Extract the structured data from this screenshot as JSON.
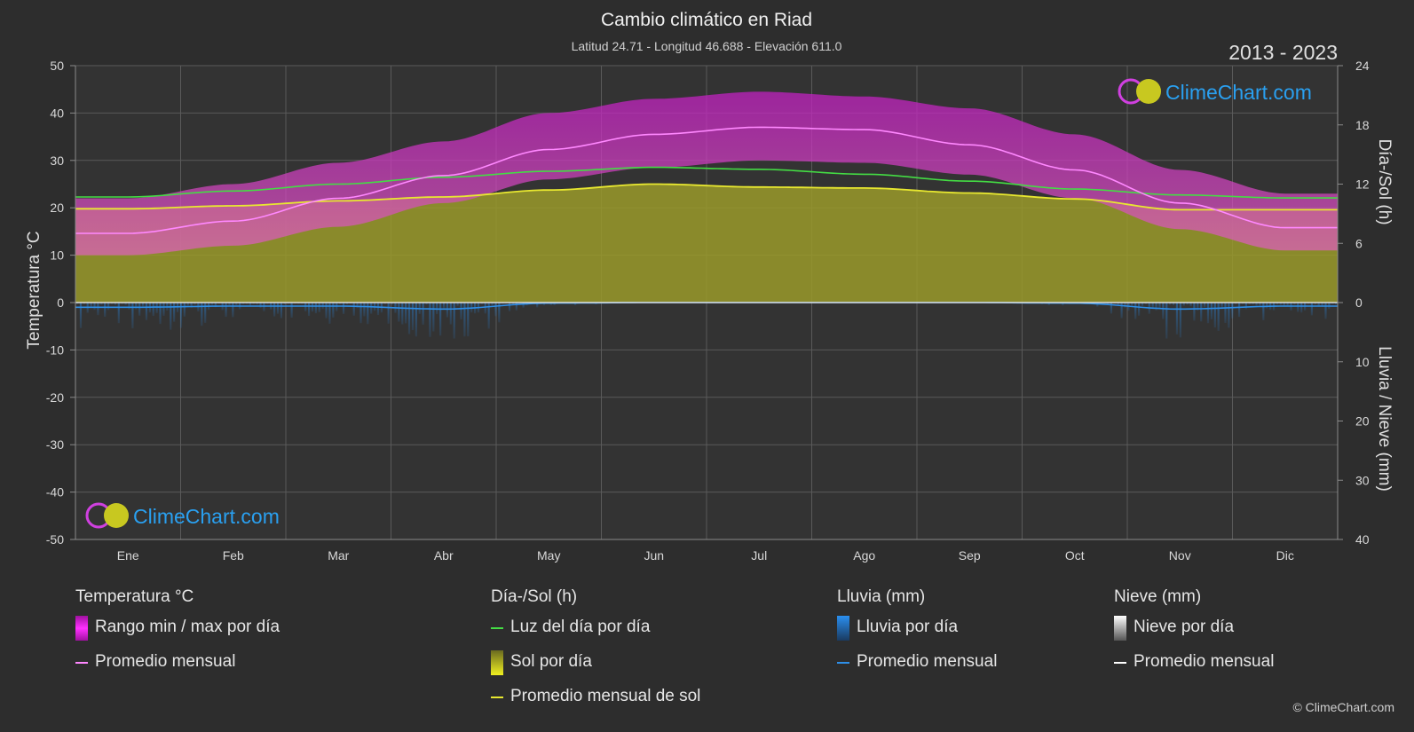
{
  "title": "Cambio climático en Riad",
  "subtitle": "Latitud 24.71 - Longitud 46.688 - Elevación 611.0",
  "year_range": "2013 - 2023",
  "watermark": "ClimeChart.com",
  "copyright": "© ClimeChart.com",
  "colors": {
    "background": "#2d2d2d",
    "temp_range": "#d020d0",
    "temp_avg": "#ff88ff",
    "daylight": "#44dd44",
    "sunshine_fill": "#9a9a2a",
    "sunshine_avg": "#e8e830",
    "rain": "#2a7fd0",
    "rain_avg": "#2e8fe8",
    "snow_avg": "#ffffff",
    "grid": "#5a5a5a"
  },
  "chart_data": {
    "type": "area",
    "x_labels": [
      "Ene",
      "Feb",
      "Mar",
      "Abr",
      "May",
      "Jun",
      "Jul",
      "Ago",
      "Sep",
      "Oct",
      "Nov",
      "Dic"
    ],
    "left_axis": {
      "label": "Temperatura °C",
      "range": [
        -50,
        50
      ],
      "ticks": [
        50,
        40,
        30,
        20,
        10,
        0,
        -10,
        -20,
        -30,
        -40,
        -50
      ]
    },
    "right_axis_top": {
      "label": "Día-/Sol (h)",
      "range": [
        0,
        24
      ],
      "ticks": [
        24,
        18,
        12,
        6,
        0
      ]
    },
    "right_axis_bottom": {
      "label": "Lluvia / Nieve (mm)",
      "range": [
        0,
        40
      ],
      "ticks": [
        0,
        10,
        20,
        30,
        40
      ]
    },
    "grid": true,
    "series": [
      {
        "name": "Promedio mensual",
        "group": "Temperatura °C",
        "unit": "°C",
        "values": [
          14.6,
          17.2,
          22.0,
          26.8,
          32.3,
          35.5,
          37.0,
          36.5,
          33.3,
          28.0,
          21.0,
          15.8
        ]
      },
      {
        "name": "Rango min / max por día",
        "group": "Temperatura °C",
        "unit": "°C",
        "min": [
          10.0,
          12.0,
          16.0,
          21.0,
          26.0,
          28.5,
          30.0,
          29.5,
          27.0,
          22.0,
          15.5,
          11.0
        ],
        "max": [
          22.0,
          25.0,
          29.5,
          34.0,
          40.0,
          43.0,
          44.5,
          43.5,
          41.0,
          35.5,
          28.0,
          23.0
        ]
      },
      {
        "name": "Luz del día por día",
        "group": "Día-/Sol (h)",
        "unit": "h",
        "values": [
          10.7,
          11.3,
          12.0,
          12.7,
          13.3,
          13.7,
          13.5,
          13.0,
          12.3,
          11.5,
          10.9,
          10.6
        ]
      },
      {
        "name": "Promedio mensual de sol",
        "group": "Día-/Sol (h)",
        "unit": "h",
        "values": [
          9.5,
          9.8,
          10.3,
          10.7,
          11.4,
          12.0,
          11.7,
          11.6,
          11.1,
          10.5,
          9.4,
          9.4
        ]
      },
      {
        "name": "Promedio mensual",
        "group": "Lluvia (mm)",
        "unit": "mm",
        "values": [
          0.8,
          0.6,
          0.6,
          1.1,
          0.1,
          0.0,
          0.0,
          0.0,
          0.0,
          0.1,
          1.1,
          0.6
        ]
      },
      {
        "name": "Promedio mensual",
        "group": "Nieve (mm)",
        "unit": "mm",
        "values": [
          0,
          0,
          0,
          0,
          0,
          0,
          0,
          0,
          0,
          0,
          0,
          0
        ]
      }
    ]
  },
  "legend": {
    "groups": [
      {
        "title": "Temperatura °C",
        "items": [
          {
            "label": "Rango min / max por día",
            "kind": "box",
            "color": "#d020d0"
          },
          {
            "label": "Promedio mensual",
            "kind": "line",
            "color": "#ff88ff"
          }
        ]
      },
      {
        "title": "Día-/Sol (h)",
        "items": [
          {
            "label": "Luz del día por día",
            "kind": "line",
            "color": "#44dd44"
          },
          {
            "label": "Sol por día",
            "kind": "box",
            "color": "#d8d820"
          },
          {
            "label": "Promedio mensual de sol",
            "kind": "line",
            "color": "#e8e830"
          }
        ]
      },
      {
        "title": "Lluvia (mm)",
        "items": [
          {
            "label": "Lluvia por día",
            "kind": "box",
            "color": "#2a7fd0"
          },
          {
            "label": "Promedio mensual",
            "kind": "line",
            "color": "#2e8fe8"
          }
        ]
      },
      {
        "title": "Nieve (mm)",
        "items": [
          {
            "label": "Nieve por día",
            "kind": "box",
            "color": "#e0e0e0"
          },
          {
            "label": "Promedio mensual",
            "kind": "line",
            "color": "#ffffff"
          }
        ]
      }
    ]
  }
}
